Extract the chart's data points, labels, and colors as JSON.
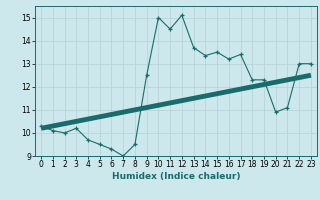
{
  "xlabel": "Humidex (Indice chaleur)",
  "bg_color": "#cce8ec",
  "line_color": "#1a6b6b",
  "grid_color": "#b8d4d8",
  "xlim": [
    -0.5,
    23.5
  ],
  "ylim": [
    9,
    15.5
  ],
  "yticks": [
    9,
    10,
    11,
    12,
    13,
    14,
    15
  ],
  "xticks": [
    0,
    1,
    2,
    3,
    4,
    5,
    6,
    7,
    8,
    9,
    10,
    11,
    12,
    13,
    14,
    15,
    16,
    17,
    18,
    19,
    20,
    21,
    22,
    23
  ],
  "curve1_x": [
    0,
    1,
    2,
    3,
    4,
    5,
    6,
    7,
    8,
    9,
    10,
    11,
    12,
    13,
    14,
    15,
    16,
    17,
    18,
    19,
    20,
    21,
    22,
    23
  ],
  "curve1_y": [
    10.3,
    10.1,
    10.0,
    10.2,
    9.7,
    9.5,
    9.3,
    9.0,
    9.5,
    12.5,
    15.0,
    14.5,
    15.1,
    13.7,
    13.35,
    13.5,
    13.2,
    13.4,
    12.3,
    12.3,
    10.9,
    11.1,
    13.0,
    13.0
  ],
  "curve2_x": [
    0,
    23
  ],
  "curve2_y": [
    10.2,
    12.5
  ],
  "tick_fontsize": 5.5,
  "xlabel_fontsize": 6.5
}
